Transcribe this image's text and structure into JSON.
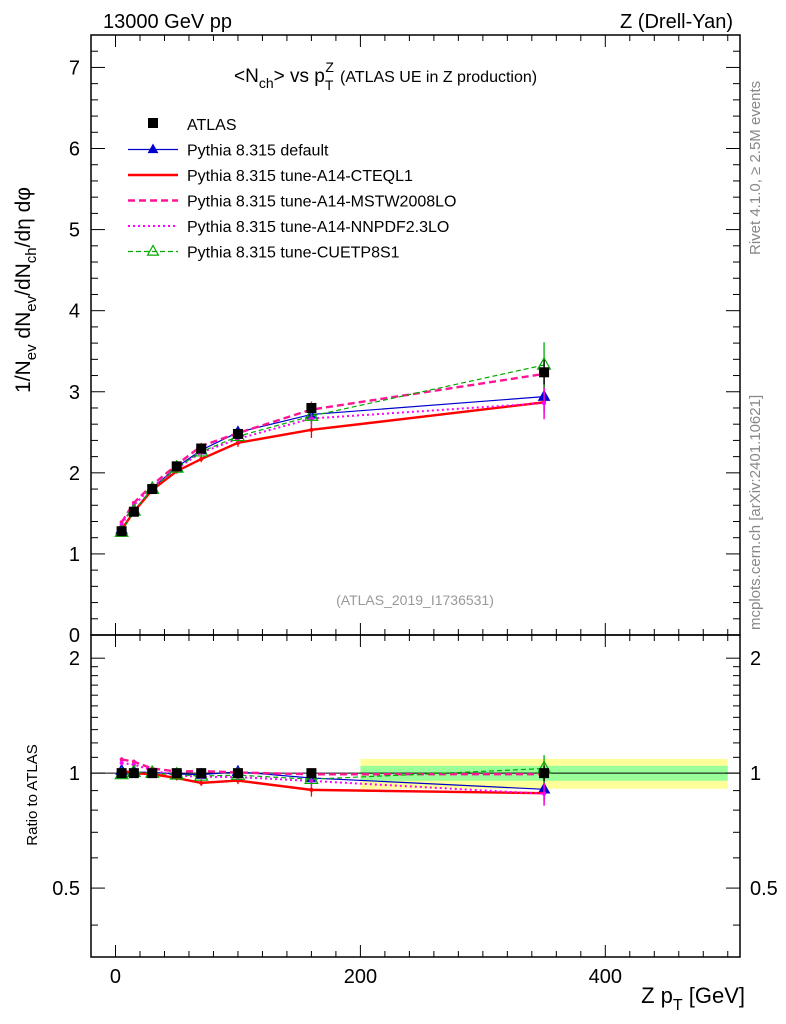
{
  "header": {
    "energy_label": "13000 GeV pp",
    "process_label": "Z (Drell-Yan)"
  },
  "side_labels": {
    "rivet": "Rivet 4.1.0, ≥ 2.5M events",
    "mcplots": "mcplots.cern.ch [arXiv:2401.10621]"
  },
  "watermark": "(ATLAS_2019_I1736531)",
  "chart_data": {
    "type": "line",
    "title": "<N_ch> vs p_T^Z (ATLAS UE in Z production)",
    "title_parts": {
      "a": "<N",
      "a_sub": "ch",
      "b": "> vs p",
      "b_sub": "T",
      "b_sup": "Z",
      "c": "(ATLAS UE in Z production)"
    },
    "ylabel": "1/N_ev dN_ev/dN_ch/dη dφ",
    "ylabel_parts": {
      "p1": "1/N",
      "s1": "ev",
      "p2": " dN",
      "s2": "ev",
      "p3": "/dN",
      "s3": "ch",
      "p4": "/dη dφ"
    },
    "xlabel": "Z p_T [GeV]",
    "xlabel_parts": {
      "p1": "Z p",
      "s1": "T",
      "p2": " [GeV]"
    },
    "ratio_ylabel": "Ratio to ATLAS",
    "xlim": [
      -20,
      510
    ],
    "ylim": [
      0,
      7.4
    ],
    "ratio_ylim": [
      0.33,
      2.3
    ],
    "xticks": [
      0,
      200,
      400
    ],
    "xtick_labels": [
      "0",
      "200",
      "400"
    ],
    "yticks": [
      0,
      1,
      2,
      3,
      4,
      5,
      6,
      7
    ],
    "ytick_labels": [
      "0",
      "1",
      "2",
      "3",
      "4",
      "5",
      "6",
      "7"
    ],
    "ratio_yticks": [
      0.5,
      1,
      2
    ],
    "ratio_ytick_labels": [
      "0.5",
      "1",
      "2"
    ],
    "x": [
      5,
      15,
      30,
      50,
      70,
      100,
      160,
      350
    ],
    "data_band_ratio": {
      "x_ranges": [
        [
          0,
          200,
          1.0,
          1.0,
          1.0,
          1.0
        ],
        [
          200,
          500,
          0.955,
          1.045,
          0.91,
          1.09
        ]
      ],
      "inner_color": "#99ff99",
      "outer_color": "#ffff99"
    },
    "series": [
      {
        "name": "ATLAS",
        "style": "data",
        "color": "#000000",
        "values": [
          1.28,
          1.52,
          1.8,
          2.08,
          2.3,
          2.48,
          2.8,
          3.24
        ],
        "errors": [
          0.02,
          0.02,
          0.02,
          0.03,
          0.03,
          0.04,
          0.06,
          0.15
        ],
        "ratio": [
          1,
          1,
          1,
          1,
          1,
          1,
          1,
          1
        ]
      },
      {
        "name": "Pythia 8.315 default",
        "style": "line-triangle",
        "color": "#0000cc",
        "values": [
          1.3,
          1.53,
          1.81,
          2.07,
          2.28,
          2.5,
          2.72,
          2.94
        ],
        "errors": [
          0.02,
          0.02,
          0.02,
          0.03,
          0.04,
          0.05,
          0.1,
          0.2
        ],
        "ratio": [
          1.015,
          1.006,
          1.005,
          0.995,
          0.991,
          1.008,
          0.971,
          0.907
        ]
      },
      {
        "name": "Pythia 8.315 tune-A14-CTEQL1",
        "style": "solid-thick",
        "color": "#ff0000",
        "values": [
          1.3,
          1.52,
          1.79,
          2.02,
          2.17,
          2.37,
          2.53,
          2.87
        ],
        "errors": [
          0.02,
          0.02,
          0.02,
          0.03,
          0.04,
          0.05,
          0.1,
          0.2
        ],
        "ratio": [
          1.015,
          1.0,
          0.994,
          0.971,
          0.943,
          0.956,
          0.904,
          0.886
        ]
      },
      {
        "name": "Pythia 8.315 tune-A14-MSTW2008LO",
        "style": "dashed-thick",
        "color": "#ff1493",
        "values": [
          1.39,
          1.63,
          1.85,
          2.1,
          2.33,
          2.49,
          2.78,
          3.22
        ],
        "errors": [
          0.02,
          0.02,
          0.02,
          0.03,
          0.04,
          0.05,
          0.1,
          0.2
        ],
        "ratio": [
          1.086,
          1.072,
          1.028,
          1.01,
          1.013,
          1.004,
          0.993,
          0.994
        ]
      },
      {
        "name": "Pythia 8.315 tune-A14-NNPDF2.3LO",
        "style": "dotted",
        "color": "#ff00ff",
        "values": [
          1.36,
          1.6,
          1.83,
          2.05,
          2.25,
          2.42,
          2.67,
          2.86
        ],
        "errors": [
          0.02,
          0.02,
          0.02,
          0.03,
          0.04,
          0.05,
          0.1,
          0.2
        ],
        "ratio": [
          1.063,
          1.053,
          1.017,
          0.986,
          0.978,
          0.976,
          0.954,
          0.883
        ]
      },
      {
        "name": "Pythia 8.315 tune-CUETP8S1",
        "style": "dashed-open-triangle",
        "color": "#00aa00",
        "values": [
          1.27,
          1.53,
          1.8,
          2.06,
          2.26,
          2.45,
          2.7,
          3.33
        ],
        "errors": [
          0.02,
          0.02,
          0.02,
          0.03,
          0.04,
          0.05,
          0.1,
          0.28
        ],
        "ratio": [
          0.992,
          1.006,
          1.0,
          0.99,
          0.983,
          0.988,
          0.964,
          1.028
        ]
      }
    ]
  }
}
